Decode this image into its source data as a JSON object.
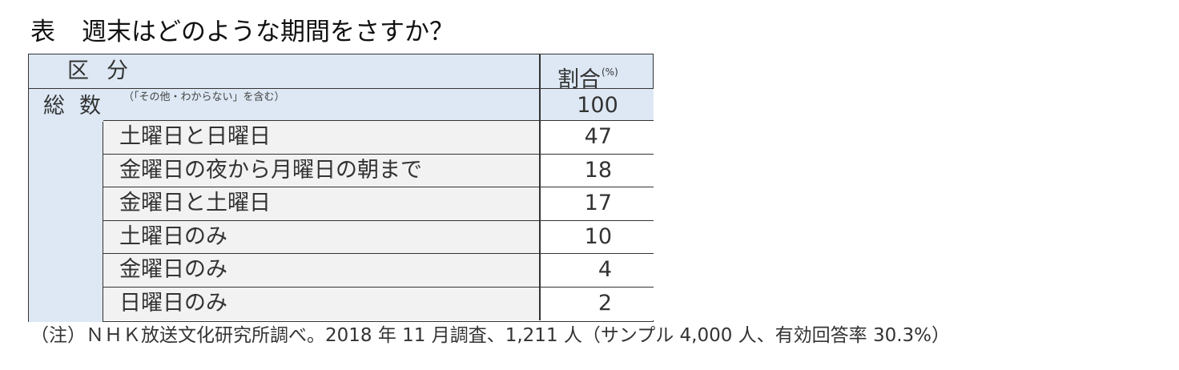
{
  "title": {
    "label": "表",
    "text": "週末はどのような期間をさすか？"
  },
  "table": {
    "header": {
      "category_label": "区分",
      "ratio_label": "割合",
      "ratio_unit": "(%)"
    },
    "total": {
      "label": "総数",
      "note": "（「その他・わからない」を含む）",
      "value": "100"
    },
    "rows": [
      {
        "label": "土曜日と日曜日",
        "value": "47"
      },
      {
        "label": "金曜日の夜から月曜日の朝まで",
        "value": "18"
      },
      {
        "label": "金曜日と土曜日",
        "value": "17"
      },
      {
        "label": "土曜日のみ",
        "value": "10"
      },
      {
        "label": "金曜日のみ",
        "value": "4"
      },
      {
        "label": "日曜日のみ",
        "value": "2"
      }
    ]
  },
  "footnote": "（注）ＮＨＫ放送文化研究所調べ。2018 年 11 月調査、1,211 人（サンプル 4,000 人、有効回答率 30.3%）",
  "colors": {
    "header_bg": "#dde8f4",
    "row_bg": "#f2f2f2",
    "border": "#333333"
  }
}
